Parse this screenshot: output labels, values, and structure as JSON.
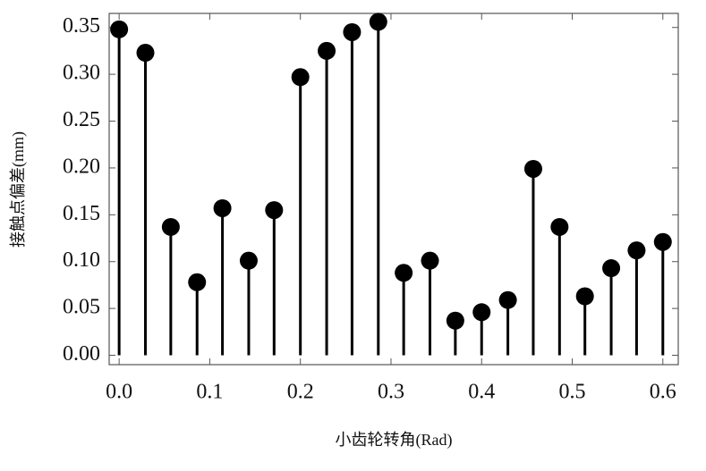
{
  "chart_data": {
    "type": "stem",
    "xlabel": "小齿轮转角(Rad)",
    "ylabel": "接触点偏差(mm)",
    "color": "#000000",
    "x": [
      0.0,
      0.029,
      0.057,
      0.086,
      0.114,
      0.143,
      0.171,
      0.2,
      0.229,
      0.257,
      0.286,
      0.314,
      0.343,
      0.371,
      0.4,
      0.429,
      0.457,
      0.486,
      0.514,
      0.543,
      0.571,
      0.6
    ],
    "values": [
      0.348,
      0.323,
      0.137,
      0.078,
      0.157,
      0.101,
      0.155,
      0.297,
      0.325,
      0.345,
      0.356,
      0.088,
      0.101,
      0.037,
      0.046,
      0.059,
      0.199,
      0.137,
      0.063,
      0.093,
      0.112,
      0.121
    ],
    "xlim": [
      -0.011,
      0.617
    ],
    "ylim": [
      -0.01,
      0.365
    ],
    "xticks": [
      {
        "value": 0,
        "label": "0.0"
      },
      0.1,
      0.2,
      0.3,
      0.4,
      0.5,
      0.6
    ],
    "yticks": [
      {
        "value": 0,
        "label": "0.00"
      },
      0.05,
      {
        "value": 0.1,
        "label": "0.10"
      },
      0.15,
      {
        "value": 0.2,
        "label": "0.20"
      },
      0.25,
      {
        "value": 0.3,
        "label": "0.30"
      },
      0.35
    ]
  }
}
